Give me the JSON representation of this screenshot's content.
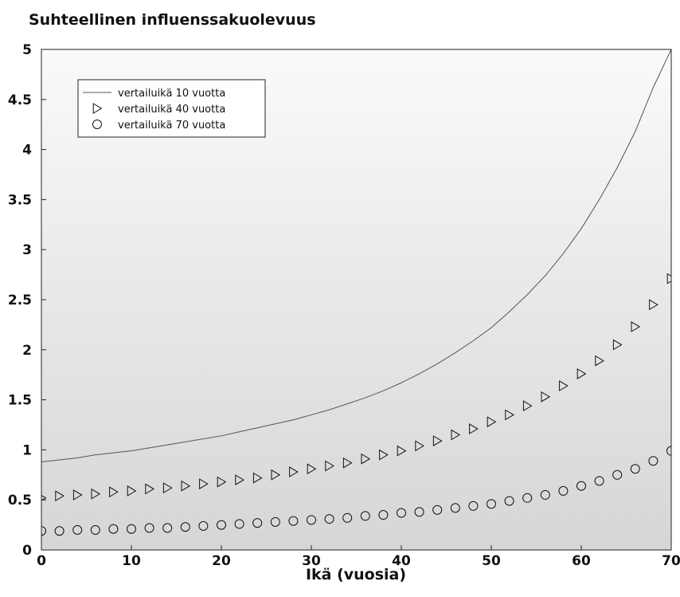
{
  "chart_data": {
    "type": "line",
    "title": "Suhteellinen influenssakuolevuus",
    "xlabel": "Ikä (vuosia)",
    "ylabel": "",
    "xlim": [
      0,
      70
    ],
    "ylim": [
      0,
      5
    ],
    "x_ticks": [
      "0",
      "10",
      "20",
      "30",
      "40",
      "50",
      "60",
      "70"
    ],
    "y_ticks": [
      "0",
      "0.5",
      "1",
      "1.5",
      "2",
      "2.5",
      "3",
      "3.5",
      "4",
      "4.5",
      "5"
    ],
    "grid": false,
    "legend_position": "top-left",
    "background": "vertical gradient, light to grey",
    "x": [
      0,
      2,
      4,
      6,
      8,
      10,
      12,
      14,
      16,
      18,
      20,
      22,
      24,
      26,
      28,
      30,
      32,
      34,
      36,
      38,
      40,
      42,
      44,
      46,
      48,
      50,
      52,
      54,
      56,
      58,
      60,
      62,
      64,
      66,
      68,
      70
    ],
    "series": [
      {
        "name": "vertailuikä 10 vuotta",
        "style": "line",
        "color": "#555555",
        "values": [
          0.88,
          0.9,
          0.92,
          0.95,
          0.97,
          0.99,
          1.02,
          1.05,
          1.08,
          1.11,
          1.14,
          1.18,
          1.22,
          1.26,
          1.3,
          1.35,
          1.4,
          1.46,
          1.52,
          1.59,
          1.67,
          1.76,
          1.86,
          1.97,
          2.09,
          2.22,
          2.38,
          2.55,
          2.74,
          2.96,
          3.21,
          3.5,
          3.82,
          4.18,
          4.62,
          5.0
        ]
      },
      {
        "name": "vertailuikä 40 vuotta",
        "style": "triangle-right",
        "color": "#111111",
        "x": [
          0,
          2,
          4,
          6,
          8,
          10,
          12,
          14,
          16,
          18,
          20,
          22,
          24,
          26,
          28,
          30,
          32,
          34,
          36,
          38,
          40,
          42,
          44,
          46,
          48,
          50,
          52,
          54,
          56,
          58,
          60,
          62,
          64,
          66,
          68,
          70
        ],
        "values": [
          0.52,
          0.54,
          0.55,
          0.56,
          0.58,
          0.59,
          0.61,
          0.62,
          0.64,
          0.66,
          0.68,
          0.7,
          0.72,
          0.75,
          0.78,
          0.81,
          0.84,
          0.87,
          0.91,
          0.95,
          0.99,
          1.04,
          1.09,
          1.15,
          1.21,
          1.28,
          1.35,
          1.44,
          1.53,
          1.64,
          1.76,
          1.89,
          2.05,
          2.23,
          2.45,
          2.71
        ]
      },
      {
        "name": "vertailuikä 70 vuotta",
        "style": "circle",
        "color": "#111111",
        "x": [
          0,
          2,
          4,
          6,
          8,
          10,
          12,
          14,
          16,
          18,
          20,
          22,
          24,
          26,
          28,
          30,
          32,
          34,
          36,
          38,
          40,
          42,
          44,
          46,
          48,
          50,
          52,
          54,
          56,
          58,
          60,
          62,
          64,
          66,
          68,
          70
        ],
        "values": [
          0.19,
          0.19,
          0.2,
          0.2,
          0.21,
          0.21,
          0.22,
          0.22,
          0.23,
          0.24,
          0.25,
          0.26,
          0.27,
          0.28,
          0.29,
          0.3,
          0.31,
          0.32,
          0.34,
          0.35,
          0.37,
          0.38,
          0.4,
          0.42,
          0.44,
          0.46,
          0.49,
          0.52,
          0.55,
          0.59,
          0.64,
          0.69,
          0.75,
          0.81,
          0.89,
          0.99
        ]
      }
    ]
  }
}
